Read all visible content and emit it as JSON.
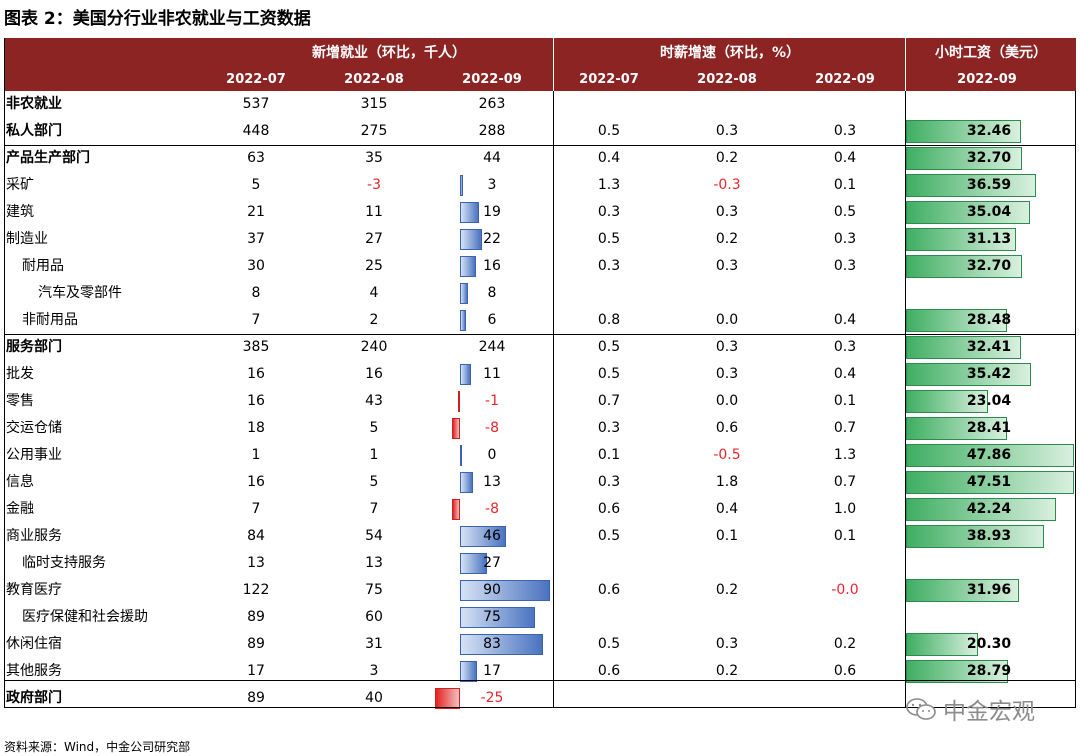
{
  "title": "图表 2：美国分行业非农就业与工资数据",
  "header": {
    "group1": "新增就业（环比，千人）",
    "group2": "时薪增速（环比，%）",
    "group3": "小时工资（美元）",
    "months": [
      "2022-07",
      "2022-08",
      "2022-09",
      "2022-07",
      "2022-08",
      "2022-09",
      "2022-09"
    ]
  },
  "rows": [
    {
      "label": "非农就业",
      "bold": true,
      "indent": 0,
      "jobs": [
        "537",
        "315",
        "263"
      ],
      "sep_val": 263,
      "wage_growth": [
        "",
        "",
        ""
      ],
      "wage": "",
      "wage_val": null
    },
    {
      "label": "私人部门",
      "bold": true,
      "indent": 0,
      "jobs": [
        "448",
        "275",
        "288"
      ],
      "sep_val": 288,
      "wage_growth": [
        "0.5",
        "0.3",
        "0.3"
      ],
      "wage": "32.46",
      "wage_val": 32.46
    },
    {
      "label": "产品生产部门",
      "bold": true,
      "indent": 0,
      "jobs": [
        "63",
        "35",
        "44"
      ],
      "sep_val": 44,
      "wage_growth": [
        "0.4",
        "0.2",
        "0.4"
      ],
      "wage": "32.70",
      "wage_val": 32.7
    },
    {
      "label": "采矿",
      "bold": false,
      "indent": 0,
      "jobs": [
        "5",
        "-3",
        "3"
      ],
      "sep_val": 3,
      "wage_growth": [
        "1.3",
        "-0.3",
        "0.1"
      ],
      "wage": "36.59",
      "wage_val": 36.59,
      "bar": true
    },
    {
      "label": "建筑",
      "bold": false,
      "indent": 0,
      "jobs": [
        "21",
        "11",
        "19"
      ],
      "sep_val": 19,
      "wage_growth": [
        "0.3",
        "0.3",
        "0.5"
      ],
      "wage": "35.04",
      "wage_val": 35.04,
      "bar": true
    },
    {
      "label": "制造业",
      "bold": false,
      "indent": 0,
      "jobs": [
        "37",
        "27",
        "22"
      ],
      "sep_val": 22,
      "wage_growth": [
        "0.5",
        "0.2",
        "0.3"
      ],
      "wage": "31.13",
      "wage_val": 31.13,
      "bar": true
    },
    {
      "label": "耐用品",
      "bold": false,
      "indent": 1,
      "jobs": [
        "30",
        "25",
        "16"
      ],
      "sep_val": 16,
      "wage_growth": [
        "0.3",
        "0.3",
        "0.3"
      ],
      "wage": "32.70",
      "wage_val": 32.7,
      "bar": true
    },
    {
      "label": "汽车及零部件",
      "bold": false,
      "indent": 2,
      "jobs": [
        "8",
        "4",
        "8"
      ],
      "sep_val": 8,
      "wage_growth": [
        "",
        "",
        ""
      ],
      "wage": "",
      "wage_val": null,
      "bar": true
    },
    {
      "label": "非耐用品",
      "bold": false,
      "indent": 1,
      "jobs": [
        "7",
        "2",
        "6"
      ],
      "sep_val": 6,
      "wage_growth": [
        "0.8",
        "0.0",
        "0.4"
      ],
      "wage": "28.48",
      "wage_val": 28.48,
      "bar": true
    },
    {
      "label": "服务部门",
      "bold": true,
      "indent": 0,
      "jobs": [
        "385",
        "240",
        "244"
      ],
      "sep_val": 244,
      "wage_growth": [
        "0.5",
        "0.3",
        "0.3"
      ],
      "wage": "32.41",
      "wage_val": 32.41
    },
    {
      "label": "批发",
      "bold": false,
      "indent": 0,
      "jobs": [
        "16",
        "16",
        "11"
      ],
      "sep_val": 11,
      "wage_growth": [
        "0.5",
        "0.3",
        "0.4"
      ],
      "wage": "35.42",
      "wage_val": 35.42,
      "bar": true
    },
    {
      "label": "零售",
      "bold": false,
      "indent": 0,
      "jobs": [
        "16",
        "43",
        "-1"
      ],
      "sep_val": -1,
      "wage_growth": [
        "0.7",
        "0.0",
        "0.1"
      ],
      "wage": "23.04",
      "wage_val": 23.04,
      "bar": true
    },
    {
      "label": "交运仓储",
      "bold": false,
      "indent": 0,
      "jobs": [
        "18",
        "5",
        "-8"
      ],
      "sep_val": -8,
      "wage_growth": [
        "0.3",
        "0.6",
        "0.7"
      ],
      "wage": "28.41",
      "wage_val": 28.41,
      "bar": true
    },
    {
      "label": "公用事业",
      "bold": false,
      "indent": 0,
      "jobs": [
        "1",
        "1",
        "0"
      ],
      "sep_val": 0,
      "wage_growth": [
        "0.1",
        "-0.5",
        "1.3"
      ],
      "wage": "47.86",
      "wage_val": 47.86,
      "bar": true
    },
    {
      "label": "信息",
      "bold": false,
      "indent": 0,
      "jobs": [
        "16",
        "5",
        "13"
      ],
      "sep_val": 13,
      "wage_growth": [
        "0.3",
        "1.8",
        "0.7"
      ],
      "wage": "47.51",
      "wage_val": 47.51,
      "bar": true
    },
    {
      "label": "金融",
      "bold": false,
      "indent": 0,
      "jobs": [
        "7",
        "7",
        "-8"
      ],
      "sep_val": -8,
      "wage_growth": [
        "0.6",
        "0.4",
        "1.0"
      ],
      "wage": "42.24",
      "wage_val": 42.24,
      "bar": true
    },
    {
      "label": "商业服务",
      "bold": false,
      "indent": 0,
      "jobs": [
        "84",
        "54",
        "46"
      ],
      "sep_val": 46,
      "wage_growth": [
        "0.5",
        "0.1",
        "0.1"
      ],
      "wage": "38.93",
      "wage_val": 38.93,
      "bar": true
    },
    {
      "label": "临时支持服务",
      "bold": false,
      "indent": 1,
      "jobs": [
        "13",
        "13",
        "27"
      ],
      "sep_val": 27,
      "wage_growth": [
        "",
        "",
        ""
      ],
      "wage": "",
      "wage_val": null,
      "bar": true
    },
    {
      "label": "教育医疗",
      "bold": false,
      "indent": 0,
      "jobs": [
        "122",
        "75",
        "90"
      ],
      "sep_val": 90,
      "wage_growth": [
        "0.6",
        "0.2",
        "-0.0"
      ],
      "wage": "31.96",
      "wage_val": 31.96,
      "bar": true
    },
    {
      "label": "医疗保健和社会援助",
      "bold": false,
      "indent": 1,
      "jobs": [
        "89",
        "60",
        "75"
      ],
      "sep_val": 75,
      "wage_growth": [
        "",
        "",
        ""
      ],
      "wage": "",
      "wage_val": null,
      "bar": true
    },
    {
      "label": "休闲住宿",
      "bold": false,
      "indent": 0,
      "jobs": [
        "89",
        "31",
        "83"
      ],
      "sep_val": 83,
      "wage_growth": [
        "0.5",
        "0.3",
        "0.2"
      ],
      "wage": "20.30",
      "wage_val": 20.3,
      "bar": true
    },
    {
      "label": "其他服务",
      "bold": false,
      "indent": 0,
      "jobs": [
        "17",
        "3",
        "17"
      ],
      "sep_val": 17,
      "wage_growth": [
        "0.6",
        "0.2",
        "0.6"
      ],
      "wage": "28.79",
      "wage_val": 28.79,
      "bar": true
    },
    {
      "label": "政府部门",
      "bold": true,
      "indent": 0,
      "jobs": [
        "89",
        "40",
        "-25"
      ],
      "sep_val": -25,
      "wage_growth": [
        "",
        "",
        ""
      ],
      "wage": "",
      "wage_val": null,
      "bar": true
    }
  ],
  "colors": {
    "header_bg": "#8b2423",
    "negative": "#e8262b",
    "bar_blue": "#4a73c0",
    "bar_red": "#e52222",
    "bar_green": "#3fae62"
  },
  "source": "资料来源：Wind，中金公司研究部",
  "watermark": "中金宏观"
}
